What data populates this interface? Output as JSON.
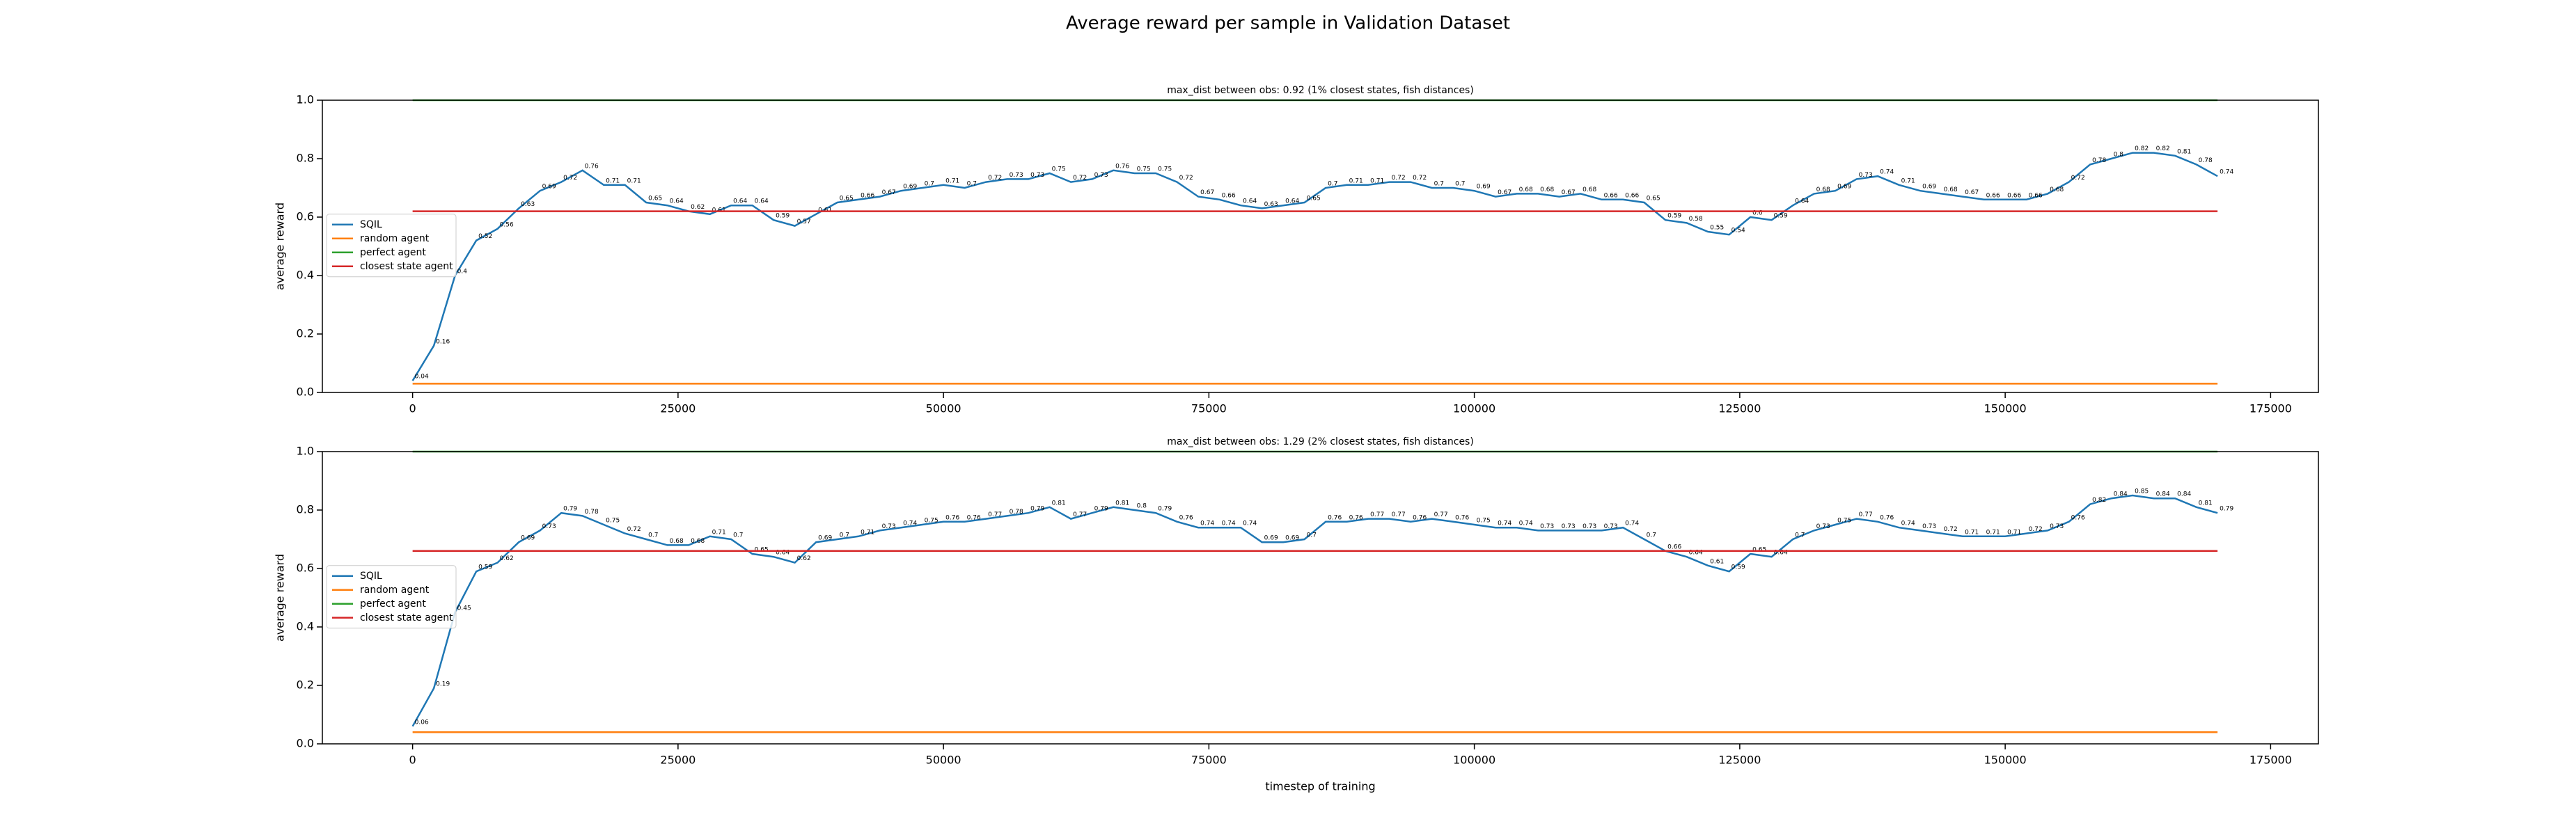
{
  "title": "Average reward per sample in Validation Dataset",
  "chart_data": [
    {
      "type": "line",
      "title": "max_dist between obs: 0.92 (1% closest states, fish distances)",
      "y_label": "average reward",
      "x": [
        0,
        2000,
        4000,
        6000,
        8000,
        10000,
        12000,
        14000,
        16000,
        18000,
        20000,
        22000,
        24000,
        26000,
        28000,
        30000,
        32000,
        34000,
        36000,
        38000,
        40000,
        42000,
        44000,
        46000,
        48000,
        50000,
        52000,
        54000,
        56000,
        58000,
        60000,
        62000,
        64000,
        66000,
        68000,
        70000,
        72000,
        74000,
        76000,
        78000,
        80000,
        82000,
        84000,
        86000,
        88000,
        90000,
        92000,
        94000,
        96000,
        98000,
        100000,
        102000,
        104000,
        106000,
        108000,
        110000,
        112000,
        114000,
        116000,
        118000,
        120000,
        122000,
        124000,
        126000,
        128000,
        130000,
        132000,
        134000,
        136000,
        138000,
        140000,
        142000,
        144000,
        146000,
        148000,
        150000,
        152000,
        154000,
        156000,
        158000,
        160000,
        162000,
        164000,
        166000,
        168000,
        170000
      ],
      "series": [
        {
          "name": "SQIL",
          "color": "#1f77b4",
          "labels": true,
          "values": [
            0.04,
            0.16,
            0.4,
            0.52,
            0.56,
            0.63,
            0.69,
            0.72,
            0.76,
            0.71,
            0.71,
            0.65,
            0.64,
            0.62,
            0.61,
            0.64,
            0.64,
            0.59,
            0.57,
            0.61,
            0.65,
            0.66,
            0.67,
            0.69,
            0.7,
            0.71,
            0.7,
            0.72,
            0.73,
            0.73,
            0.75,
            0.72,
            0.73,
            0.76,
            0.75,
            0.75,
            0.72,
            0.67,
            0.66,
            0.64,
            0.63,
            0.64,
            0.65,
            0.7,
            0.71,
            0.71,
            0.72,
            0.72,
            0.7,
            0.7,
            0.69,
            0.67,
            0.68,
            0.68,
            0.67,
            0.68,
            0.66,
            0.66,
            0.65,
            0.59,
            0.58,
            0.55,
            0.54,
            0.6,
            0.59,
            0.64,
            0.68,
            0.69,
            0.73,
            0.74,
            0.71,
            0.69,
            0.68,
            0.67,
            0.66,
            0.66,
            0.66,
            0.68,
            0.72,
            0.78,
            0.8,
            0.82,
            0.82,
            0.81,
            0.78,
            0.74
          ]
        },
        {
          "name": "random agent",
          "color": "#ff7f0e",
          "x": [
            0,
            170000
          ],
          "values": [
            0.03,
            0.03
          ]
        },
        {
          "name": "perfect agent",
          "color": "#2ca02c",
          "x": [
            0,
            170000
          ],
          "values": [
            1,
            1
          ]
        },
        {
          "name": "closest state agent",
          "color": "#d62728",
          "x": [
            0,
            170000
          ],
          "values": [
            0.62,
            0.62
          ]
        }
      ],
      "xlim": [
        -8500,
        179500
      ],
      "xticks": [
        0,
        25000,
        50000,
        75000,
        100000,
        125000,
        150000,
        175000
      ],
      "ylim": [
        0,
        1
      ],
      "yticks": [
        {
          "value": 0,
          "label": "0.0"
        },
        0.2,
        0.4,
        0.6,
        0.8,
        {
          "value": 1,
          "label": "1.0"
        }
      ],
      "legend": "left"
    },
    {
      "type": "line",
      "title": "max_dist between obs: 1.29 (2% closest states, fish distances)",
      "y_label": "average reward",
      "x_label": "timestep of training",
      "x": [
        0,
        2000,
        4000,
        6000,
        8000,
        10000,
        12000,
        14000,
        16000,
        18000,
        20000,
        22000,
        24000,
        26000,
        28000,
        30000,
        32000,
        34000,
        36000,
        38000,
        40000,
        42000,
        44000,
        46000,
        48000,
        50000,
        52000,
        54000,
        56000,
        58000,
        60000,
        62000,
        64000,
        66000,
        68000,
        70000,
        72000,
        74000,
        76000,
        78000,
        80000,
        82000,
        84000,
        86000,
        88000,
        90000,
        92000,
        94000,
        96000,
        98000,
        100000,
        102000,
        104000,
        106000,
        108000,
        110000,
        112000,
        114000,
        116000,
        118000,
        120000,
        122000,
        124000,
        126000,
        128000,
        130000,
        132000,
        134000,
        136000,
        138000,
        140000,
        142000,
        144000,
        146000,
        148000,
        150000,
        152000,
        154000,
        156000,
        158000,
        160000,
        162000,
        164000,
        166000,
        168000,
        170000
      ],
      "series": [
        {
          "name": "SQIL",
          "color": "#1f77b4",
          "labels": true,
          "values": [
            0.06,
            0.19,
            0.45,
            0.59,
            0.62,
            0.69,
            0.73,
            0.79,
            0.78,
            0.75,
            0.72,
            0.7,
            0.68,
            0.68,
            0.71,
            0.7,
            0.65,
            0.64,
            0.62,
            0.69,
            0.7,
            0.71,
            0.73,
            0.74,
            0.75,
            0.76,
            0.76,
            0.77,
            0.78,
            0.79,
            0.81,
            0.77,
            0.79,
            0.81,
            0.8,
            0.79,
            0.76,
            0.74,
            0.74,
            0.74,
            0.69,
            0.69,
            0.7,
            0.76,
            0.76,
            0.77,
            0.77,
            0.76,
            0.77,
            0.76,
            0.75,
            0.74,
            0.74,
            0.73,
            0.73,
            0.73,
            0.73,
            0.74,
            0.7,
            0.66,
            0.64,
            0.61,
            0.59,
            0.65,
            0.64,
            0.7,
            0.73,
            0.75,
            0.77,
            0.76,
            0.74,
            0.73,
            0.72,
            0.71,
            0.71,
            0.71,
            0.72,
            0.73,
            0.76,
            0.82,
            0.84,
            0.85,
            0.84,
            0.84,
            0.81,
            0.79
          ]
        },
        {
          "name": "random agent",
          "color": "#ff7f0e",
          "x": [
            0,
            170000
          ],
          "values": [
            0.04,
            0.04
          ]
        },
        {
          "name": "perfect agent",
          "color": "#2ca02c",
          "x": [
            0,
            170000
          ],
          "values": [
            1,
            1
          ]
        },
        {
          "name": "closest state agent",
          "color": "#d62728",
          "x": [
            0,
            170000
          ],
          "values": [
            0.66,
            0.66
          ]
        }
      ],
      "xlim": [
        -8500,
        179500
      ],
      "xticks": [
        0,
        25000,
        50000,
        75000,
        100000,
        125000,
        150000,
        175000
      ],
      "ylim": [
        0,
        1
      ],
      "yticks": [
        {
          "value": 0,
          "label": "0.0"
        },
        0.2,
        0.4,
        0.6,
        0.8,
        {
          "value": 1,
          "label": "1.0"
        }
      ],
      "legend": "left"
    }
  ]
}
